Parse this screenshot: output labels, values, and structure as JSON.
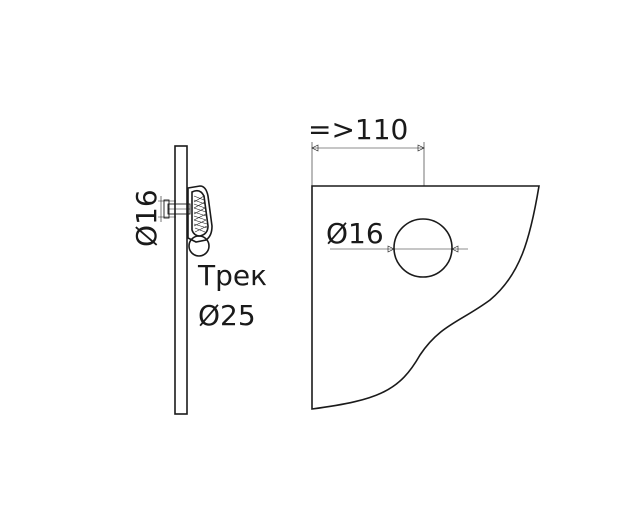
{
  "labels": {
    "side_bore_diameter": "Ø16",
    "track_word": "Трек",
    "track_diameter": "Ø25",
    "min_width": "=>110",
    "hole_diameter": "Ø16"
  },
  "colors": {
    "line": "#1a1a1a",
    "background": "#ffffff"
  }
}
